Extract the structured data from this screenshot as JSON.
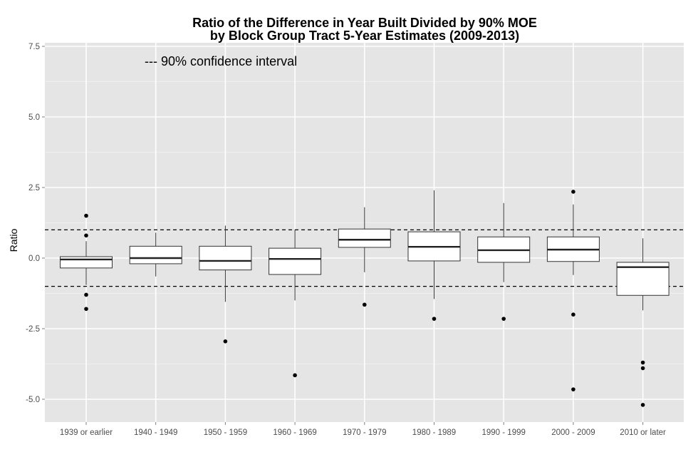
{
  "chart_data": {
    "type": "box",
    "title": "Ratio of the Difference in Year Built Divided by 90% MOE",
    "subtitle": "by Block Group Tract 5-Year Estimates (2009-2013)",
    "xlabel": "",
    "ylabel": "Ratio",
    "ylim": [
      -5.6,
      7.6
    ],
    "yticks": [
      {
        "value": -5,
        "label": "-5.0"
      },
      {
        "value": -2.5,
        "label": "-2.5"
      },
      {
        "value": 0,
        "label": "0.0"
      },
      {
        "value": 2.5,
        "label": "2.5"
      },
      {
        "value": 5,
        "label": "5.0"
      },
      {
        "value": 7.5,
        "label": "7.5"
      }
    ],
    "grid": true,
    "background": "#e5e5e5",
    "reference_lines": [
      1.0,
      -1.0
    ],
    "annotation": "--- 90% confidence interval",
    "categories": [
      "1939 or earlier",
      "1940 - 1949",
      "1950 - 1959",
      "1960 - 1969",
      "1970 - 1979",
      "1980 - 1989",
      "1990 - 1999",
      "2000 - 2009",
      "2010 or later"
    ],
    "boxes": [
      {
        "whisker_low": -0.95,
        "q1": -0.35,
        "median": -0.05,
        "q3": 0.05,
        "whisker_high": 0.6,
        "outliers": [
          1.5,
          0.8,
          -1.3,
          -1.8
        ]
      },
      {
        "whisker_low": -0.65,
        "q1": -0.2,
        "median": 0.0,
        "q3": 0.42,
        "whisker_high": 0.9,
        "outliers": []
      },
      {
        "whisker_low": -1.55,
        "q1": -0.42,
        "median": -0.1,
        "q3": 0.42,
        "whisker_high": 1.15,
        "outliers": [
          -2.95
        ]
      },
      {
        "whisker_low": -1.5,
        "q1": -0.58,
        "median": -0.03,
        "q3": 0.35,
        "whisker_high": 1.0,
        "outliers": [
          -4.15
        ]
      },
      {
        "whisker_low": -0.5,
        "q1": 0.38,
        "median": 0.65,
        "q3": 1.03,
        "whisker_high": 1.8,
        "outliers": [
          -1.65
        ]
      },
      {
        "whisker_low": -1.45,
        "q1": -0.1,
        "median": 0.4,
        "q3": 0.93,
        "whisker_high": 2.4,
        "outliers": [
          -2.15
        ]
      },
      {
        "whisker_low": -0.85,
        "q1": -0.15,
        "median": 0.28,
        "q3": 0.75,
        "whisker_high": 1.95,
        "outliers": [
          -2.15
        ]
      },
      {
        "whisker_low": -0.6,
        "q1": -0.12,
        "median": 0.3,
        "q3": 0.75,
        "whisker_high": 1.9,
        "outliers": [
          2.35,
          -2.0,
          -4.65
        ]
      },
      {
        "whisker_low": -1.85,
        "q1": -1.32,
        "median": -0.32,
        "q3": -0.15,
        "whisker_high": 0.7,
        "outliers": [
          -3.7,
          -3.9,
          -5.2
        ]
      }
    ]
  }
}
